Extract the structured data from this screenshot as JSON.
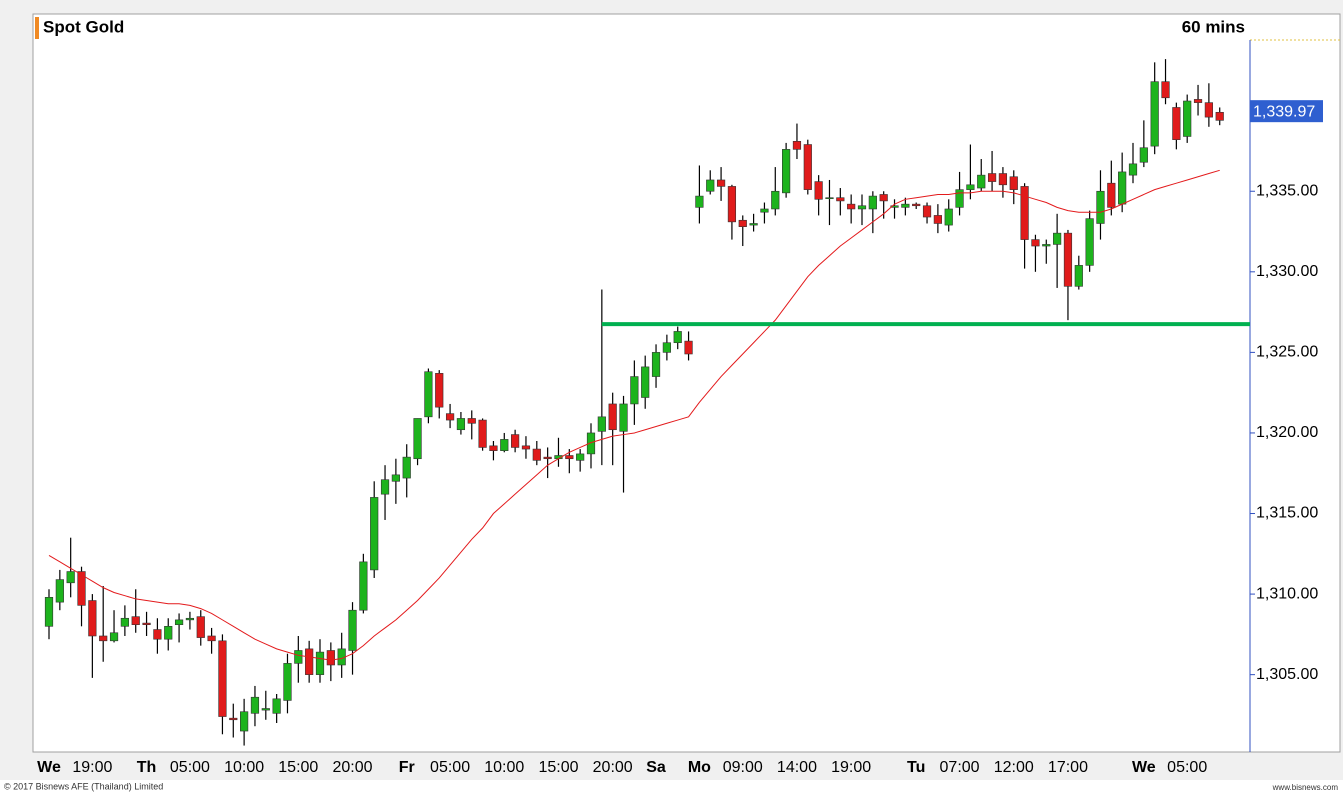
{
  "chart_data": {
    "type": "candlestick",
    "title": "Spot Gold",
    "interval": "60 mins",
    "copyright": "© 2017 Bisnews AFE (Thailand) Limited",
    "website": "www.bisnews.com",
    "categories": [
      "We",
      null,
      null,
      null,
      "19:00",
      null,
      null,
      null,
      null,
      "Th",
      null,
      null,
      null,
      "05:00",
      null,
      null,
      null,
      null,
      "10:00",
      null,
      null,
      null,
      null,
      "15:00",
      null,
      null,
      null,
      null,
      "20:00",
      null,
      null,
      null,
      null,
      "Fr",
      null,
      null,
      null,
      "05:00",
      null,
      null,
      null,
      null,
      "10:00",
      null,
      null,
      null,
      null,
      "15:00",
      null,
      null,
      null,
      null,
      "20:00",
      null,
      null,
      null,
      "Sa",
      null,
      null,
      null,
      "Mo",
      null,
      null,
      null,
      "09:00",
      null,
      null,
      null,
      null,
      "14:00",
      null,
      null,
      null,
      null,
      "19:00",
      null,
      null,
      null,
      null,
      null,
      "Tu",
      null,
      null,
      null,
      "07:00",
      null,
      null,
      null,
      null,
      "12:00",
      null,
      null,
      null,
      null,
      "17:00",
      null,
      null,
      null,
      null,
      null,
      null,
      "We",
      null,
      null,
      null,
      "05:00",
      null,
      null,
      null
    ],
    "series": [
      {
        "type": "candlestick",
        "up_color": "#1db31d",
        "down_color": "#e01b1b",
        "open": [
          1308,
          1309.5,
          1310.7,
          1311.4,
          1309.6,
          1307.4,
          1307.1,
          1308,
          1308.6,
          1308.2,
          1307.8,
          1307.2,
          1308.1,
          1308.4,
          1308.6,
          1307.4,
          1307.1,
          1302.3,
          1301.5,
          1302.6,
          1302.8,
          1302.6,
          1303.4,
          1305.7,
          1306.6,
          1305.0,
          1306.5,
          1305.6,
          1306.5,
          1309.0,
          1311.5,
          1316.2,
          1317.0,
          1317.2,
          1318.4,
          1321.0,
          1323.7,
          1321.2,
          1320.2,
          1320.9,
          1320.8,
          1319.2,
          1318.9,
          1319.9,
          1319.2,
          1319.0,
          1318.5,
          1318.4,
          1318.6,
          1318.3,
          1318.7,
          1320.1,
          1321.8,
          1320.1,
          1321.8,
          1322.2,
          1323.5,
          1325.0,
          1325.6,
          1325.7,
          1334.0,
          1335.0,
          1335.7,
          1335.3,
          1333.2,
          1332.9,
          1333.7,
          1333.9,
          1334.9,
          1338.1,
          1337.9,
          1335.6,
          1334.6,
          1334.6,
          1334.2,
          1333.9,
          1333.9,
          1334.8,
          1334.0,
          1334.0,
          1334.2,
          1334.1,
          1333.5,
          1332.9,
          1334.0,
          1335.1,
          1335.2,
          1336.1,
          1336.1,
          1335.9,
          1335.3,
          1332.0,
          1331.6,
          1331.7,
          1332.4,
          1329.1,
          1330.4,
          1333.0,
          1335.5,
          1334.2,
          1336.0,
          1336.8,
          1337.8,
          1341.8,
          1340.2,
          1338.4,
          1340.7,
          1340.5,
          1339.9
        ],
        "high": [
          1310.3,
          1311.5,
          1313.5,
          1311.7,
          1310,
          1310.5,
          1309,
          1309.3,
          1310.3,
          1308.9,
          1308.5,
          1308.5,
          1308.8,
          1308.9,
          1309.0,
          1307.9,
          1307.5,
          1303.2,
          1303.5,
          1304.3,
          1304,
          1303.8,
          1306.3,
          1307.4,
          1307.1,
          1307.2,
          1307.0,
          1307.6,
          1309.5,
          1312.5,
          1317.0,
          1318.0,
          1318.4,
          1319.3,
          1320.9,
          1324.0,
          1323.9,
          1321.8,
          1321.3,
          1321.4,
          1320.9,
          1319.5,
          1320.0,
          1320.2,
          1319.8,
          1319.5,
          1319.1,
          1319.7,
          1319.0,
          1319.0,
          1320.6,
          1328.9,
          1322.5,
          1322.3,
          1324.5,
          1324.8,
          1325.5,
          1326.1,
          1326.6,
          1326.3,
          1336.6,
          1336.3,
          1336.5,
          1335.4,
          1333.5,
          1333.6,
          1334.3,
          1336.5,
          1338.0,
          1339.2,
          1338.2,
          1336.0,
          1335.7,
          1335.2,
          1334.8,
          1334.8,
          1335.0,
          1335.0,
          1334.5,
          1334.6,
          1334.3,
          1334.3,
          1334.2,
          1334.5,
          1336.2,
          1337.9,
          1337.0,
          1337.5,
          1336.5,
          1336.3,
          1335.5,
          1332.3,
          1332.0,
          1333.6,
          1332.6,
          1331.0,
          1333.8,
          1336.3,
          1336.9,
          1337.4,
          1338.0,
          1339.4,
          1343.0,
          1343.2,
          1340.5,
          1341.0,
          1341.6,
          1341.7,
          1340.2
        ],
        "low": [
          1307.2,
          1309,
          1309.8,
          1308,
          1304.8,
          1305.8,
          1307,
          1307.4,
          1307.6,
          1307.4,
          1306.3,
          1306.5,
          1307,
          1307.8,
          1306.8,
          1306.3,
          1301.3,
          1301.1,
          1300.6,
          1301.8,
          1302.2,
          1302.0,
          1302.6,
          1304.5,
          1304.5,
          1304.5,
          1304.6,
          1304.8,
          1305.0,
          1308.8,
          1311.0,
          1314.6,
          1315.6,
          1316.0,
          1318.0,
          1320.6,
          1320.9,
          1320.3,
          1319.9,
          1319.6,
          1318.9,
          1318.3,
          1318.8,
          1318.8,
          1318.4,
          1318.0,
          1317.2,
          1317.9,
          1317.5,
          1317.6,
          1317.8,
          1318.0,
          1318.0,
          1316.3,
          1320.5,
          1321.5,
          1322.8,
          1324.5,
          1325.2,
          1324.5,
          1333.0,
          1334.8,
          1334.4,
          1332.0,
          1331.6,
          1332.5,
          1333.0,
          1333.5,
          1334.6,
          1337.0,
          1334.8,
          1333.5,
          1332.9,
          1333.5,
          1333.0,
          1332.9,
          1332.4,
          1333.3,
          1333.3,
          1333.5,
          1333.9,
          1333.0,
          1332.4,
          1332.5,
          1333.5,
          1334.5,
          1335.0,
          1335.0,
          1334.6,
          1334.2,
          1330.2,
          1330.0,
          1330.5,
          1329.0,
          1327.0,
          1328.9,
          1330.0,
          1332.0,
          1333.5,
          1333.7,
          1335.5,
          1336.5,
          1337.3,
          1340.4,
          1337.6,
          1338.0,
          1339.7,
          1339.0,
          1339.1
        ],
        "close": [
          1309.8,
          1310.9,
          1311.4,
          1309.3,
          1307.4,
          1307.1,
          1307.6,
          1308.5,
          1308.1,
          1308.1,
          1307.2,
          1308.0,
          1308.4,
          1308.5,
          1307.3,
          1307.1,
          1302.4,
          1302.2,
          1302.7,
          1303.6,
          1302.9,
          1303.5,
          1305.7,
          1306.5,
          1305.0,
          1306.4,
          1305.6,
          1306.6,
          1309.0,
          1312.0,
          1316.0,
          1317.1,
          1317.4,
          1318.5,
          1320.9,
          1323.8,
          1321.6,
          1320.8,
          1320.9,
          1320.6,
          1319.1,
          1318.9,
          1319.6,
          1319.1,
          1319.0,
          1318.3,
          1318.4,
          1318.6,
          1318.4,
          1318.7,
          1320.0,
          1321.0,
          1320.2,
          1321.8,
          1323.5,
          1324.1,
          1325.0,
          1325.6,
          1326.3,
          1324.9,
          1334.7,
          1335.7,
          1335.3,
          1333.1,
          1332.8,
          1333.0,
          1333.9,
          1335.0,
          1337.6,
          1337.6,
          1335.1,
          1334.5,
          1334.6,
          1334.4,
          1333.9,
          1334.1,
          1334.7,
          1334.4,
          1334.1,
          1334.2,
          1334.1,
          1333.4,
          1333.0,
          1333.9,
          1335.1,
          1335.4,
          1336.0,
          1335.6,
          1335.4,
          1335.1,
          1332.0,
          1331.6,
          1331.7,
          1332.4,
          1329.1,
          1330.4,
          1333.3,
          1335.0,
          1334.0,
          1336.2,
          1336.7,
          1337.7,
          1341.8,
          1340.8,
          1338.2,
          1340.6,
          1340.5,
          1339.6,
          1339.4
        ]
      },
      {
        "type": "line",
        "color": "#e31a1c",
        "values": [
          1312.4,
          1312.0,
          1311.6,
          1311.2,
          1310.8,
          1310.4,
          1310.1,
          1309.9,
          1309.7,
          1309.6,
          1309.5,
          1309.4,
          1309.4,
          1309.3,
          1309.1,
          1308.8,
          1308.4,
          1308.0,
          1307.6,
          1307.2,
          1306.9,
          1306.6,
          1306.4,
          1306.2,
          1306.1,
          1306.0,
          1305.9,
          1306.0,
          1306.3,
          1306.8,
          1307.4,
          1307.9,
          1308.4,
          1309.0,
          1309.6,
          1310.3,
          1311.0,
          1311.8,
          1312.6,
          1313.4,
          1314.1,
          1315.0,
          1315.6,
          1316.2,
          1316.8,
          1317.4,
          1318.0,
          1318.4,
          1318.8,
          1319.1,
          1319.4,
          1319.6,
          1319.8,
          1319.9,
          1320.0,
          1320.2,
          1320.4,
          1320.6,
          1320.8,
          1321.0,
          1321.9,
          1322.7,
          1323.5,
          1324.2,
          1324.9,
          1325.6,
          1326.3,
          1327.0,
          1327.9,
          1328.8,
          1329.7,
          1330.4,
          1331.0,
          1331.6,
          1332.1,
          1332.6,
          1333.1,
          1333.6,
          1334.2,
          1334.5,
          1334.6,
          1334.7,
          1334.8,
          1334.8,
          1334.9,
          1334.9,
          1335.0,
          1335.0,
          1335.0,
          1334.9,
          1334.7,
          1334.5,
          1334.3,
          1334.0,
          1333.8,
          1333.7,
          1333.7,
          1333.7,
          1333.9,
          1334.2,
          1334.5,
          1334.8,
          1335.1,
          1335.3,
          1335.5,
          1335.7,
          1335.9,
          1336.1,
          1336.3
        ]
      }
    ],
    "levels": [
      {
        "value": 1326.75,
        "from": 51,
        "color": "#00b050"
      }
    ],
    "last_price": {
      "value": 1339.97,
      "label": "1,339.97",
      "color": "#2f5fd0"
    },
    "ylim": [
      1300.2,
      1346.0
    ],
    "yticks": [
      {
        "value": 1305,
        "label": "1,305.00"
      },
      {
        "value": 1310,
        "label": "1,310.00"
      },
      {
        "value": 1315,
        "label": "1,315.00"
      },
      {
        "value": 1320,
        "label": "1,320.00"
      },
      {
        "value": 1325,
        "label": "1,325.00"
      },
      {
        "value": 1330,
        "label": "1,330.00"
      },
      {
        "value": 1335,
        "label": "1,335.00"
      }
    ]
  }
}
